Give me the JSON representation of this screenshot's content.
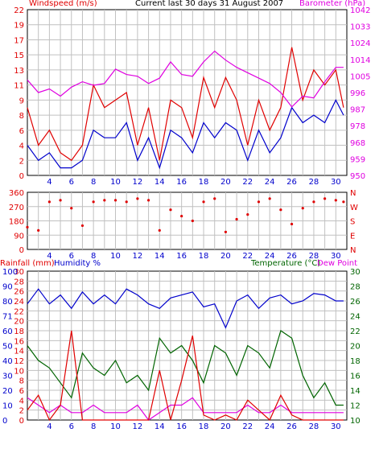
{
  "header": {
    "left": "Windspeed (m/s)",
    "center": "Current last 30 days 31 August 2007",
    "right": "Barometer (hPa)"
  },
  "colors": {
    "red": "#e00000",
    "blue": "#0000cc",
    "magenta": "#e000e0",
    "green": "#006400",
    "grid": "#c0c0c0",
    "frame": "#000000"
  },
  "chart_data": [
    {
      "type": "line",
      "title": "Current last 30 days 31 August 2007",
      "ylabel": "Windspeed (m/s)",
      "y2label": "Barometer (hPa)",
      "ylim": [
        0,
        22
      ],
      "y2lim": [
        950,
        1042
      ],
      "y_ticks": [
        "0",
        "2",
        "4",
        "6",
        "8",
        "9",
        "11",
        "13",
        "15",
        "17",
        "19",
        "22"
      ],
      "y2_ticks": [
        "950",
        "959",
        "968",
        "978",
        "987",
        "996",
        "1005",
        "1014",
        "1024",
        "1033",
        "1042"
      ],
      "x_ticks": [
        "4",
        "6",
        "8",
        "10",
        "12",
        "14",
        "16",
        "18",
        "20",
        "22",
        "24",
        "26",
        "28",
        "30"
      ],
      "xlim": [
        2,
        31
      ],
      "series": [
        {
          "name": "Windspeed gust",
          "color": "#e00000",
          "x": [
            2,
            3,
            4,
            5,
            6,
            7,
            8,
            9,
            10,
            11,
            12,
            13,
            14,
            15,
            16,
            17,
            18,
            19,
            20,
            21,
            22,
            23,
            24,
            25,
            26,
            27,
            28,
            29,
            30,
            30.7
          ],
          "values": [
            9,
            4,
            6,
            3,
            2,
            4,
            12,
            9,
            10,
            11,
            4,
            9,
            2,
            10,
            9,
            5,
            13,
            9,
            13,
            10,
            4,
            10,
            6,
            9,
            17,
            10,
            14,
            12,
            14,
            9
          ]
        },
        {
          "name": "Windspeed average",
          "color": "#0000cc",
          "x": [
            2,
            3,
            4,
            5,
            6,
            7,
            8,
            9,
            10,
            11,
            12,
            13,
            14,
            15,
            16,
            17,
            18,
            19,
            20,
            21,
            22,
            23,
            24,
            25,
            26,
            27,
            28,
            29,
            30,
            30.7
          ],
          "values": [
            4,
            2,
            3,
            1,
            1,
            2,
            6,
            5,
            5,
            7,
            2,
            5,
            1,
            6,
            5,
            3,
            7,
            5,
            7,
            6,
            2,
            6,
            3,
            5,
            9,
            7,
            8,
            7,
            10,
            8
          ]
        },
        {
          "name": "Barometer",
          "color": "#e000e0",
          "x": [
            2,
            3,
            4,
            5,
            6,
            7,
            8,
            9,
            10,
            11,
            12,
            13,
            14,
            15,
            16,
            17,
            18,
            19,
            20,
            21,
            22,
            23,
            24,
            25,
            26,
            27,
            28,
            29,
            30,
            30.7
          ],
          "values": [
            1003,
            996,
            998,
            994,
            999,
            1002,
            1000,
            1001,
            1009,
            1006,
            1005,
            1001,
            1004,
            1013,
            1006,
            1005,
            1013,
            1019,
            1014,
            1010,
            1007,
            1004,
            1001,
            996,
            988,
            994,
            993,
            1002,
            1010,
            1010
          ]
        }
      ]
    },
    {
      "type": "scatter",
      "ylabel": "Wind direction",
      "ylim": [
        0,
        360
      ],
      "y_ticks": [
        "0",
        "90",
        "180",
        "270",
        "360"
      ],
      "y2_ticks": [
        "N",
        "E",
        "S",
        "W",
        "N"
      ],
      "x_ticks": [
        "4",
        "6",
        "8",
        "10",
        "12",
        "14",
        "16",
        "18",
        "20",
        "22",
        "24",
        "26",
        "28",
        "30"
      ],
      "xlim": [
        2,
        31
      ],
      "series": [
        {
          "name": "Wind direction",
          "color": "#e00000",
          "x": [
            2,
            3,
            4,
            5,
            6,
            7,
            8,
            9,
            10,
            11,
            12,
            13,
            14,
            15,
            16,
            17,
            18,
            19,
            20,
            21,
            22,
            23,
            24,
            25,
            26,
            27,
            28,
            29,
            30,
            30.7
          ],
          "values": [
            140,
            120,
            300,
            310,
            260,
            150,
            300,
            310,
            310,
            300,
            320,
            310,
            120,
            250,
            210,
            180,
            300,
            320,
            110,
            190,
            220,
            300,
            320,
            250,
            160,
            260,
            300,
            320,
            310,
            300
          ]
        }
      ]
    },
    {
      "type": "line",
      "ylabel": "Rainfall (mm)",
      "ylabel2": "Humidity %",
      "y2label": "Temperature (°C)",
      "y2label2": "Dew Point",
      "ylim": [
        0,
        30
      ],
      "y2lim": [
        10,
        30
      ],
      "y_ticks": [
        "0",
        "2",
        "4",
        "6",
        "8",
        "10",
        "12",
        "14",
        "16",
        "18",
        "20",
        "22",
        "24",
        "26",
        "28",
        "30"
      ],
      "y_ticks_humidity": [
        "0",
        "10",
        "20",
        "30",
        "40",
        "50",
        "60",
        "71",
        "80",
        "90",
        "100"
      ],
      "y2_ticks": [
        "10",
        "12",
        "14",
        "16",
        "18",
        "20",
        "22",
        "24",
        "26",
        "28",
        "30"
      ],
      "x_ticks": [
        "4",
        "6",
        "8",
        "10",
        "12",
        "14",
        "16",
        "18",
        "20",
        "22",
        "24",
        "26",
        "28",
        "30"
      ],
      "xlim": [
        2,
        31
      ],
      "series": [
        {
          "name": "Humidity",
          "color": "#0000cc",
          "x": [
            2,
            3,
            4,
            5,
            6,
            7,
            8,
            9,
            10,
            11,
            12,
            13,
            14,
            15,
            16,
            17,
            18,
            19,
            20,
            21,
            22,
            23,
            24,
            25,
            26,
            27,
            28,
            29,
            30,
            30.7
          ],
          "values": [
            78,
            88,
            78,
            84,
            75,
            86,
            78,
            84,
            78,
            88,
            84,
            78,
            75,
            82,
            84,
            86,
            76,
            78,
            62,
            80,
            84,
            75,
            82,
            84,
            78,
            80,
            85,
            84,
            80,
            80
          ]
        },
        {
          "name": "Temperature",
          "color": "#006400",
          "x": [
            2,
            3,
            4,
            5,
            6,
            7,
            8,
            9,
            10,
            11,
            12,
            13,
            14,
            15,
            16,
            17,
            18,
            19,
            20,
            21,
            22,
            23,
            24,
            25,
            26,
            27,
            28,
            29,
            30,
            30.7
          ],
          "values": [
            20,
            18,
            17,
            15,
            13,
            19,
            17,
            16,
            18,
            15,
            16,
            14,
            21,
            19,
            20,
            18,
            15,
            20,
            19,
            16,
            20,
            19,
            17,
            22,
            21,
            16,
            13,
            15,
            12,
            12
          ]
        },
        {
          "name": "Dew Point",
          "color": "#e000e0",
          "x": [
            2,
            3,
            4,
            5,
            6,
            7,
            8,
            9,
            10,
            11,
            12,
            13,
            14,
            15,
            16,
            17,
            18,
            19,
            20,
            21,
            22,
            23,
            24,
            25,
            26,
            27,
            28,
            29,
            30,
            30.7
          ],
          "values": [
            13,
            12,
            11,
            12,
            11,
            11,
            12,
            11,
            11,
            11,
            12,
            10,
            11,
            12,
            12,
            13,
            11,
            11,
            11,
            11,
            12,
            11,
            11,
            12,
            11,
            11,
            11,
            11,
            11,
            11
          ]
        },
        {
          "name": "Rainfall",
          "color": "#e00000",
          "x": [
            2,
            3,
            4,
            5,
            6,
            7,
            8,
            9,
            10,
            11,
            12,
            13,
            14,
            15,
            16,
            17,
            18,
            19,
            20,
            21,
            22,
            23,
            24,
            25,
            26,
            27,
            28,
            29,
            30,
            30.7
          ],
          "values": [
            2,
            5,
            0,
            3,
            18,
            0,
            0,
            0,
            0,
            0,
            0,
            0,
            10,
            0,
            8,
            17,
            1,
            0,
            1,
            0,
            4,
            2,
            0,
            5,
            1,
            0,
            0,
            0,
            0,
            0
          ]
        }
      ]
    }
  ]
}
